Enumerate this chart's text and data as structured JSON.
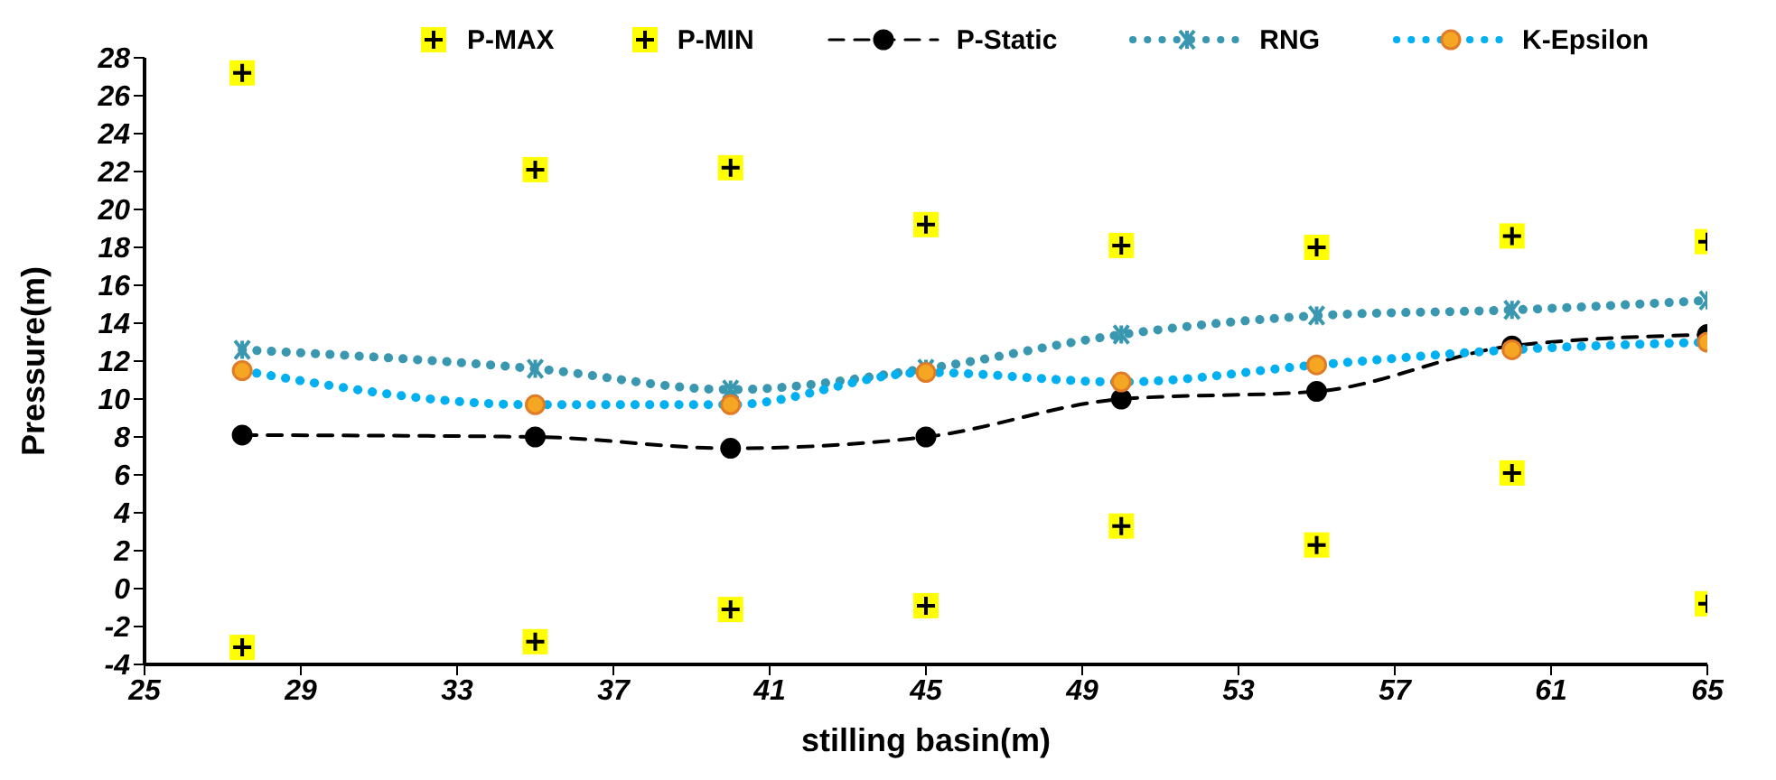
{
  "chart_data": {
    "type": "line",
    "xlabel": "stilling basin(m)",
    "ylabel": "Pressure(m)",
    "x": [
      27.5,
      35,
      40,
      45,
      50,
      55,
      60,
      65
    ],
    "xlim": [
      25,
      65
    ],
    "xticks": [
      25,
      29,
      33,
      37,
      41,
      45,
      49,
      53,
      57,
      61,
      65
    ],
    "ylim": [
      -4,
      28
    ],
    "yticks": [
      -4,
      -2,
      0,
      2,
      4,
      6,
      8,
      10,
      12,
      14,
      16,
      18,
      20,
      22,
      24,
      26,
      28
    ],
    "grid": false,
    "legend": "top",
    "series": [
      {
        "name": "P-MAX",
        "type": "scatter",
        "color": "#ffff00",
        "marker": "square",
        "values": [
          27.2,
          22.1,
          22.2,
          19.2,
          18.1,
          18.0,
          18.6,
          18.3
        ]
      },
      {
        "name": "P-MIN",
        "type": "scatter",
        "color": "#ffff00",
        "marker": "square",
        "values": [
          -3.1,
          -2.8,
          -1.1,
          -0.9,
          3.3,
          2.3,
          6.1,
          -0.8
        ]
      },
      {
        "name": "P-Static",
        "color": "#000000",
        "marker": "circle",
        "line_style": "dashed",
        "values": [
          8.1,
          8.0,
          7.4,
          8.0,
          10.0,
          10.4,
          12.8,
          13.4
        ]
      },
      {
        "name": "RNG",
        "color": "#3a97b0",
        "marker": "cross",
        "line_style": "dotted",
        "values": [
          12.6,
          11.6,
          10.5,
          11.6,
          13.4,
          14.4,
          14.7,
          15.2
        ]
      },
      {
        "name": "K-Epsilon",
        "color": "#00b0f0",
        "marker": "circle",
        "line_style": "dotted",
        "values": [
          11.5,
          9.7,
          9.7,
          11.4,
          10.9,
          11.8,
          12.6,
          13.0
        ]
      }
    ]
  }
}
